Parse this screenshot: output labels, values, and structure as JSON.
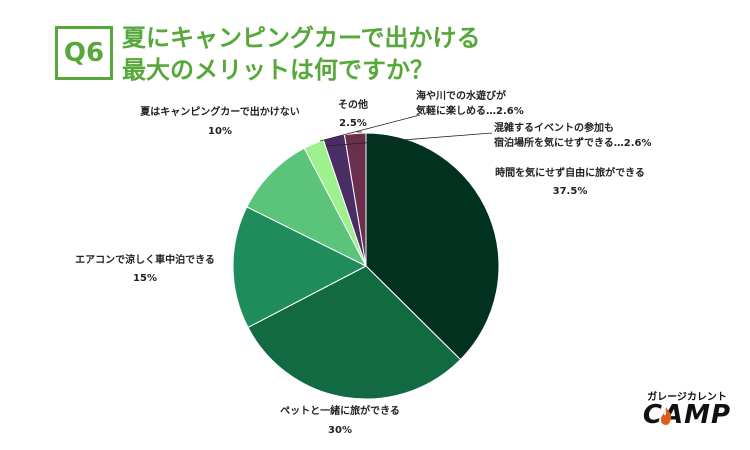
{
  "header": {
    "badge": "Q6",
    "title_line1": "夏にキャンピングカーで出かける",
    "title_line2": "最大のメリットは何ですか？"
  },
  "chart_data": {
    "type": "pie",
    "start": "12 o'clock",
    "direction": "clockwise",
    "slices": [
      {
        "label": "時間を気にせず自由に旅ができる",
        "value": 37.5,
        "value_text": "37.5%",
        "color": "#013220"
      },
      {
        "label": "ペットと一緒に旅ができる",
        "value": 30,
        "value_text": "30%",
        "color": "#126a43"
      },
      {
        "label": "エアコンで涼しく車中泊できる",
        "value": 15,
        "value_text": "15%",
        "color": "#1f8c5c"
      },
      {
        "label": "夏はキャンピングカーで出かけない",
        "value": 10,
        "value_text": "10%",
        "color": "#5bc47a"
      },
      {
        "label": "その他",
        "value": 2.5,
        "value_text": "2.5%",
        "color": "#9ef28e"
      },
      {
        "label": "海や川での水遊びが気軽に楽しめる",
        "value": 2.6,
        "value_text": "…2.6%",
        "color": "#4b2d66"
      },
      {
        "label": "混雑するイベントの参加も宿泊場所を気にせずできる",
        "value": 2.6,
        "value_text": "…2.6%",
        "color": "#6b2e4c"
      }
    ],
    "labels": {
      "s0": {
        "line1": "時間を気にせず自由に旅ができる",
        "line2": "37.5%"
      },
      "s1": {
        "line1": "ペットと一緒に旅ができる",
        "line2": "30%"
      },
      "s2": {
        "line1": "エアコンで涼しく車中泊できる",
        "line2": "15%"
      },
      "s3": {
        "line1": "夏はキャンピングカーで出かけない",
        "line2": "10%"
      },
      "s4": {
        "line1": "その他",
        "line2": "2.5%"
      },
      "s5": {
        "line1": "海や川での水遊びが",
        "line2": "気軽に楽しめる…2.6%"
      },
      "s6": {
        "line1": "混雑するイベントの参加も",
        "line2": "宿泊場所を気にせずできる…2.6%"
      }
    }
  },
  "logo": {
    "top_text": "ガレージカレント",
    "main_text": "CAMP"
  }
}
